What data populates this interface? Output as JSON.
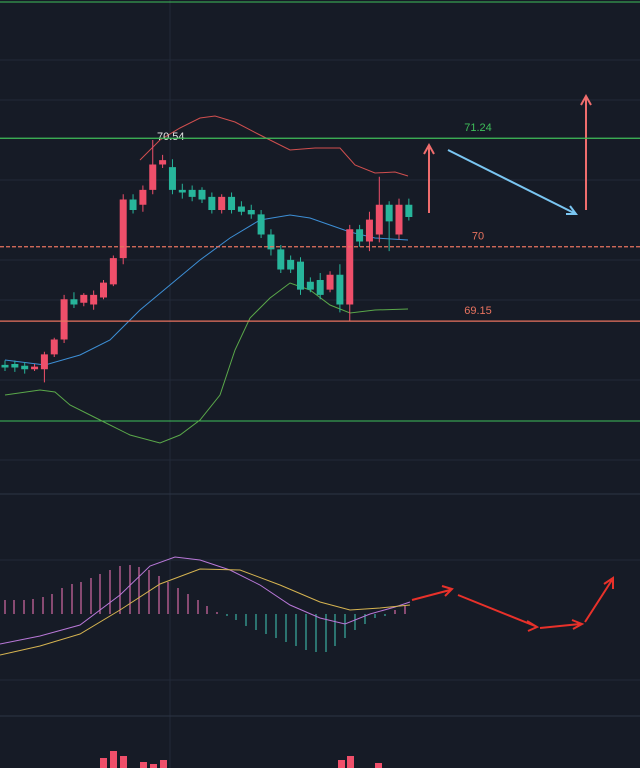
{
  "chart_data": {
    "type": "candlestick",
    "ylim": [
      67.22,
      72.82
    ],
    "up_color": "#ef4f6a",
    "down_color": "#27b59b",
    "candles": [
      [
        68.65,
        68.7,
        68.58,
        68.62
      ],
      [
        68.66,
        68.7,
        68.57,
        68.62
      ],
      [
        68.64,
        68.68,
        68.55,
        68.6
      ],
      [
        68.6,
        68.66,
        68.58,
        68.63
      ],
      [
        68.6,
        68.8,
        68.45,
        68.77
      ],
      [
        68.77,
        68.96,
        68.74,
        68.94
      ],
      [
        68.94,
        69.45,
        68.9,
        69.4
      ],
      [
        69.4,
        69.48,
        69.3,
        69.34
      ],
      [
        69.36,
        69.47,
        69.32,
        69.45
      ],
      [
        69.34,
        69.5,
        69.28,
        69.45
      ],
      [
        69.42,
        69.62,
        69.4,
        69.59
      ],
      [
        69.57,
        69.9,
        69.55,
        69.87
      ],
      [
        69.87,
        70.6,
        69.8,
        70.54
      ],
      [
        70.54,
        70.6,
        70.38,
        70.42
      ],
      [
        70.48,
        70.7,
        70.4,
        70.65
      ],
      [
        70.65,
        71.22,
        70.6,
        70.94
      ],
      [
        70.94,
        71.05,
        70.9,
        70.99
      ],
      [
        70.91,
        71.0,
        70.6,
        70.65
      ],
      [
        70.65,
        70.72,
        70.55,
        70.62
      ],
      [
        70.65,
        70.7,
        70.52,
        70.57
      ],
      [
        70.65,
        70.68,
        70.5,
        70.54
      ],
      [
        70.57,
        70.62,
        70.38,
        70.42
      ],
      [
        70.42,
        70.6,
        70.38,
        70.57
      ],
      [
        70.57,
        70.62,
        70.38,
        70.42
      ],
      [
        70.46,
        70.52,
        70.36,
        70.4
      ],
      [
        70.42,
        70.48,
        70.32,
        70.37
      ],
      [
        70.37,
        70.42,
        70.1,
        70.14
      ],
      [
        70.14,
        70.2,
        69.9,
        69.97
      ],
      [
        69.97,
        70.02,
        69.7,
        69.74
      ],
      [
        69.85,
        69.9,
        69.7,
        69.74
      ],
      [
        69.83,
        69.88,
        69.45,
        69.51
      ],
      [
        69.6,
        69.65,
        69.48,
        69.51
      ],
      [
        69.62,
        69.7,
        69.4,
        69.45
      ],
      [
        69.51,
        69.72,
        69.48,
        69.68
      ],
      [
        69.68,
        69.8,
        69.25,
        69.34
      ],
      [
        69.34,
        70.25,
        69.15,
        70.2
      ],
      [
        70.2,
        70.25,
        70.0,
        70.06
      ],
      [
        70.06,
        70.4,
        69.95,
        70.31
      ],
      [
        70.14,
        70.8,
        70.05,
        70.48
      ],
      [
        70.48,
        70.52,
        69.95,
        70.29
      ],
      [
        70.14,
        70.55,
        70.08,
        70.48
      ],
      [
        70.48,
        70.55,
        70.3,
        70.34
      ]
    ],
    "high_label": 70.54,
    "levels": [
      {
        "value": 71.24,
        "color": "#3fbf5a"
      },
      {
        "value": 70,
        "color": "#e8735f"
      },
      {
        "value": 69.15,
        "color": "#e8735f"
      }
    ]
  }
}
